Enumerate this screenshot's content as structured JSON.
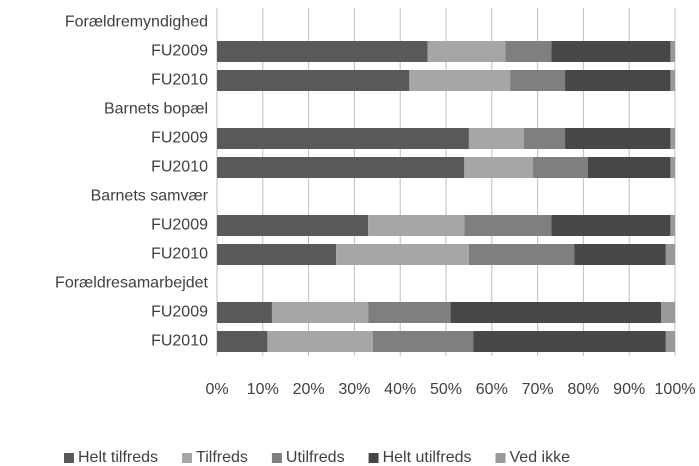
{
  "chart_data": {
    "type": "stacked_bar_horizontal",
    "categories": [
      "Forældremyndighed",
      "FU2009",
      "FU2010",
      "Barnets bopæl",
      "FU2009",
      "FU2010",
      "Barnets samvær",
      "FU2009",
      "FU2010",
      "Forældresamarbejdet",
      "FU2009",
      "FU2010"
    ],
    "series": [
      {
        "name": "Helt tilfreds",
        "color": "#595959",
        "values": [
          null,
          46,
          42,
          null,
          55,
          54,
          null,
          33,
          26,
          null,
          12,
          11
        ]
      },
      {
        "name": "Tilfreds",
        "color": "#a6a6a6",
        "values": [
          null,
          17,
          22,
          null,
          12,
          15,
          null,
          21,
          29,
          null,
          21,
          23
        ]
      },
      {
        "name": "Utilfreds",
        "color": "#7f7f7f",
        "values": [
          null,
          10,
          12,
          null,
          9,
          12,
          null,
          19,
          23,
          null,
          18,
          22
        ]
      },
      {
        "name": "Helt utilfreds",
        "color": "#474747",
        "values": [
          null,
          26,
          23,
          null,
          23,
          18,
          null,
          26,
          20,
          null,
          46,
          42
        ]
      },
      {
        "name": "Ved ikke",
        "color": "#999999",
        "values": [
          null,
          1,
          1,
          null,
          1,
          1,
          null,
          1,
          2,
          null,
          3,
          2
        ]
      }
    ],
    "xlim": [
      0,
      100
    ],
    "xticks": [
      {
        "value": 0,
        "label": "0%"
      },
      {
        "value": 10,
        "label": "10%"
      },
      {
        "value": 20,
        "label": "20%"
      },
      {
        "value": 30,
        "label": "30%"
      },
      {
        "value": 40,
        "label": "40%"
      },
      {
        "value": 50,
        "label": "50%"
      },
      {
        "value": 60,
        "label": "60%"
      },
      {
        "value": 70,
        "label": "70%"
      },
      {
        "value": 80,
        "label": "80%"
      },
      {
        "value": 90,
        "label": "90%"
      },
      {
        "value": 100,
        "label": "100%"
      }
    ],
    "grid": true,
    "legend": "bottom"
  }
}
